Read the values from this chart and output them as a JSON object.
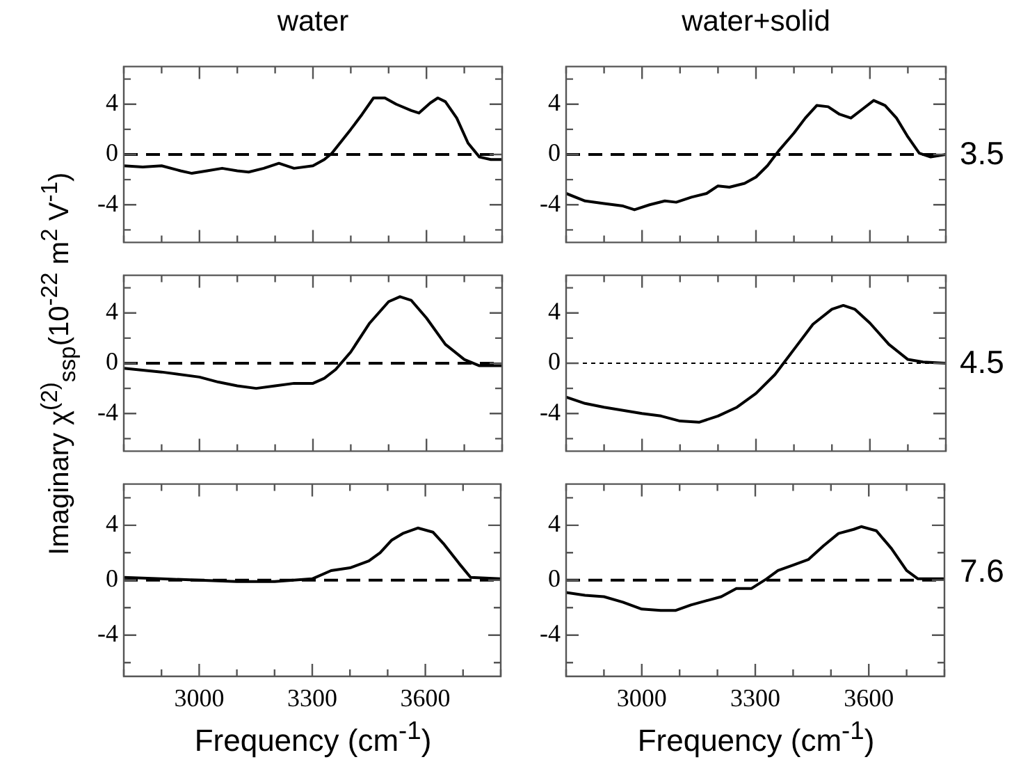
{
  "chart_data": [
    {
      "type": "line",
      "title": "water",
      "xlim": [
        2800,
        3800
      ],
      "xticks": [
        {
          "value": 2800,
          "label": null
        },
        {
          "value": 2900,
          "label": null
        },
        3000,
        {
          "value": 3100,
          "label": null
        },
        {
          "value": 3200,
          "label": null
        },
        3300,
        {
          "value": 3400,
          "label": null
        },
        {
          "value": 3500,
          "label": null
        },
        3600,
        {
          "value": 3700,
          "label": null
        },
        {
          "value": 3800,
          "label": null
        }
      ],
      "ylim": [
        -7,
        7
      ],
      "yticks": [
        {
          "value": -6,
          "label": null
        },
        -4,
        {
          "value": -2,
          "label": null
        },
        0,
        {
          "value": 2,
          "label": null
        },
        4,
        {
          "value": 6,
          "label": null
        }
      ],
      "tick_labels": "y",
      "ref_lines": [
        {
          "axis": "y",
          "value": 0,
          "line_style": "dashed"
        }
      ],
      "series": [
        {
          "color": "#000000",
          "x": [
            2800,
            2850,
            2900,
            2950,
            2980,
            3020,
            3060,
            3100,
            3130,
            3170,
            3210,
            3250,
            3300,
            3330,
            3350,
            3400,
            3430,
            3460,
            3490,
            3520,
            3560,
            3580,
            3610,
            3630,
            3650,
            3680,
            3710,
            3740,
            3770,
            3800
          ],
          "values": [
            -0.9,
            -1.0,
            -0.9,
            -1.3,
            -1.5,
            -1.3,
            -1.1,
            -1.3,
            -1.4,
            -1.1,
            -0.7,
            -1.1,
            -0.9,
            -0.4,
            0.1,
            2.0,
            3.2,
            4.5,
            4.5,
            4.0,
            3.5,
            3.3,
            4.1,
            4.5,
            4.2,
            2.9,
            0.9,
            -0.2,
            -0.4,
            -0.4
          ]
        }
      ]
    },
    {
      "type": "line",
      "title": "water+solid",
      "annotations": [
        "3.5"
      ],
      "xlim": [
        2800,
        3800
      ],
      "xticks": [
        {
          "value": 2800,
          "label": null
        },
        {
          "value": 2900,
          "label": null
        },
        3000,
        {
          "value": 3100,
          "label": null
        },
        {
          "value": 3200,
          "label": null
        },
        3300,
        {
          "value": 3400,
          "label": null
        },
        {
          "value": 3500,
          "label": null
        },
        3600,
        {
          "value": 3700,
          "label": null
        },
        {
          "value": 3800,
          "label": null
        }
      ],
      "ylim": [
        -7,
        7
      ],
      "yticks": [
        {
          "value": -6,
          "label": null
        },
        -4,
        {
          "value": -2,
          "label": null
        },
        0,
        {
          "value": 2,
          "label": null
        },
        4,
        {
          "value": 6,
          "label": null
        }
      ],
      "tick_labels": "y",
      "ref_lines": [
        {
          "axis": "y",
          "value": 0,
          "line_style": "dashed"
        }
      ],
      "series": [
        {
          "color": "#000000",
          "x": [
            2800,
            2850,
            2900,
            2950,
            2980,
            3020,
            3060,
            3090,
            3130,
            3170,
            3200,
            3230,
            3270,
            3300,
            3330,
            3360,
            3400,
            3430,
            3460,
            3490,
            3520,
            3550,
            3580,
            3610,
            3640,
            3670,
            3700,
            3730,
            3760,
            3800
          ],
          "values": [
            -3.1,
            -3.7,
            -3.9,
            -4.1,
            -4.4,
            -4.0,
            -3.7,
            -3.8,
            -3.4,
            -3.1,
            -2.5,
            -2.6,
            -2.3,
            -1.8,
            -0.9,
            0.3,
            1.7,
            2.9,
            3.9,
            3.8,
            3.2,
            2.9,
            3.6,
            4.3,
            3.9,
            2.9,
            1.4,
            0.1,
            -0.2,
            0
          ]
        }
      ]
    },
    {
      "type": "line",
      "ylabel": "Imaginary χ$^{(2)}$$_{ssp}$(10$^{-22}$ m$^{2}$ V$^{-1}$)",
      "xlim": [
        2800,
        3800
      ],
      "xticks": [
        {
          "value": 2800,
          "label": null
        },
        {
          "value": 2900,
          "label": null
        },
        3000,
        {
          "value": 3100,
          "label": null
        },
        {
          "value": 3200,
          "label": null
        },
        3300,
        {
          "value": 3400,
          "label": null
        },
        {
          "value": 3500,
          "label": null
        },
        3600,
        {
          "value": 3700,
          "label": null
        },
        {
          "value": 3800,
          "label": null
        }
      ],
      "ylim": [
        -7,
        7
      ],
      "yticks": [
        {
          "value": -6,
          "label": null
        },
        -4,
        {
          "value": -2,
          "label": null
        },
        0,
        {
          "value": 2,
          "label": null
        },
        4,
        {
          "value": 6,
          "label": null
        }
      ],
      "tick_labels": "y",
      "ref_lines": [
        {
          "axis": "y",
          "value": 0,
          "line_style": "dashed"
        }
      ],
      "series": [
        {
          "color": "#000000",
          "x": [
            2800,
            2900,
            3000,
            3050,
            3100,
            3150,
            3200,
            3250,
            3300,
            3330,
            3360,
            3400,
            3450,
            3500,
            3530,
            3560,
            3600,
            3650,
            3700,
            3740,
            3800
          ],
          "values": [
            -0.4,
            -0.7,
            -1.1,
            -1.5,
            -1.8,
            -2.0,
            -1.8,
            -1.6,
            -1.6,
            -1.2,
            -0.5,
            0.9,
            3.2,
            4.9,
            5.3,
            5.0,
            3.6,
            1.5,
            0.3,
            -0.2,
            -0.2
          ]
        }
      ]
    },
    {
      "type": "line",
      "annotations": [
        "4.5"
      ],
      "xlim": [
        2800,
        3800
      ],
      "xticks": [
        {
          "value": 2800,
          "label": null
        },
        {
          "value": 2900,
          "label": null
        },
        3000,
        {
          "value": 3100,
          "label": null
        },
        {
          "value": 3200,
          "label": null
        },
        3300,
        {
          "value": 3400,
          "label": null
        },
        {
          "value": 3500,
          "label": null
        },
        3600,
        {
          "value": 3700,
          "label": null
        },
        {
          "value": 3800,
          "label": null
        }
      ],
      "ylim": [
        -7,
        7
      ],
      "yticks": [
        {
          "value": -6,
          "label": null
        },
        -4,
        {
          "value": -2,
          "label": null
        },
        0,
        {
          "value": 2,
          "label": null
        },
        4,
        {
          "value": 6,
          "label": null
        }
      ],
      "tick_labels": "y",
      "ref_lines": [
        {
          "axis": "y",
          "value": 0,
          "line_style": "dotted"
        }
      ],
      "series": [
        {
          "color": "#000000",
          "x": [
            2800,
            2850,
            2900,
            3000,
            3050,
            3100,
            3150,
            3200,
            3250,
            3300,
            3350,
            3400,
            3450,
            3500,
            3530,
            3560,
            3600,
            3650,
            3700,
            3740,
            3800
          ],
          "values": [
            -2.7,
            -3.2,
            -3.5,
            -4.0,
            -4.2,
            -4.6,
            -4.7,
            -4.2,
            -3.5,
            -2.4,
            -0.9,
            1.1,
            3.1,
            4.3,
            4.6,
            4.3,
            3.2,
            1.5,
            0.3,
            0.1,
            0
          ]
        }
      ]
    },
    {
      "type": "line",
      "xlabel": "Frequency (cm$^{-1}$)",
      "xlim": [
        2800,
        3800
      ],
      "xticks": [
        {
          "value": 2800,
          "label": null
        },
        {
          "value": 2900,
          "label": null
        },
        3000,
        {
          "value": 3100,
          "label": null
        },
        {
          "value": 3200,
          "label": null
        },
        3300,
        {
          "value": 3400,
          "label": null
        },
        {
          "value": 3500,
          "label": null
        },
        3600,
        {
          "value": 3700,
          "label": null
        },
        {
          "value": 3800,
          "label": null
        }
      ],
      "ylim": [
        -7,
        7
      ],
      "yticks": [
        {
          "value": -6,
          "label": null
        },
        -4,
        {
          "value": -2,
          "label": null
        },
        0,
        {
          "value": 2,
          "label": null
        },
        4,
        {
          "value": 6,
          "label": null
        }
      ],
      "ref_lines": [
        {
          "axis": "y",
          "value": 0,
          "line_style": "dashed"
        }
      ],
      "series": [
        {
          "color": "#000000",
          "x": [
            2800,
            2900,
            3000,
            3100,
            3200,
            3300,
            3350,
            3400,
            3450,
            3480,
            3510,
            3540,
            3580,
            3620,
            3650,
            3690,
            3720,
            3800
          ],
          "values": [
            0.2,
            0.1,
            0,
            -0.1,
            -0.1,
            0.1,
            0.7,
            0.9,
            1.4,
            2.0,
            2.9,
            3.4,
            3.8,
            3.5,
            2.6,
            1.2,
            0.2,
            0.1
          ]
        }
      ]
    },
    {
      "type": "line",
      "xlabel": "Frequency (cm$^{-1}$)",
      "annotations": [
        "7.6"
      ],
      "xlim": [
        2800,
        3800
      ],
      "xticks": [
        {
          "value": 2800,
          "label": null
        },
        {
          "value": 2900,
          "label": null
        },
        3000,
        {
          "value": 3100,
          "label": null
        },
        {
          "value": 3200,
          "label": null
        },
        3300,
        {
          "value": 3400,
          "label": null
        },
        {
          "value": 3500,
          "label": null
        },
        3600,
        {
          "value": 3700,
          "label": null
        },
        {
          "value": 3800,
          "label": null
        }
      ],
      "ylim": [
        -7,
        7
      ],
      "yticks": [
        {
          "value": -6,
          "label": null
        },
        -4,
        {
          "value": -2,
          "label": null
        },
        0,
        {
          "value": 2,
          "label": null
        },
        4,
        {
          "value": 6,
          "label": null
        }
      ],
      "ref_lines": [
        {
          "axis": "y",
          "value": 0,
          "line_style": "dashed"
        }
      ],
      "series": [
        {
          "color": "#000000",
          "x": [
            2800,
            2850,
            2900,
            2950,
            3000,
            3050,
            3090,
            3130,
            3170,
            3210,
            3250,
            3290,
            3330,
            3360,
            3400,
            3440,
            3480,
            3520,
            3560,
            3580,
            3620,
            3660,
            3700,
            3730,
            3800
          ],
          "values": [
            -0.9,
            -1.1,
            -1.2,
            -1.6,
            -2.1,
            -2.2,
            -2.2,
            -1.8,
            -1.5,
            -1.2,
            -0.6,
            -0.6,
            0.1,
            0.7,
            1.1,
            1.5,
            2.5,
            3.4,
            3.7,
            3.9,
            3.6,
            2.3,
            0.7,
            0.1,
            0.1
          ]
        }
      ]
    }
  ]
}
